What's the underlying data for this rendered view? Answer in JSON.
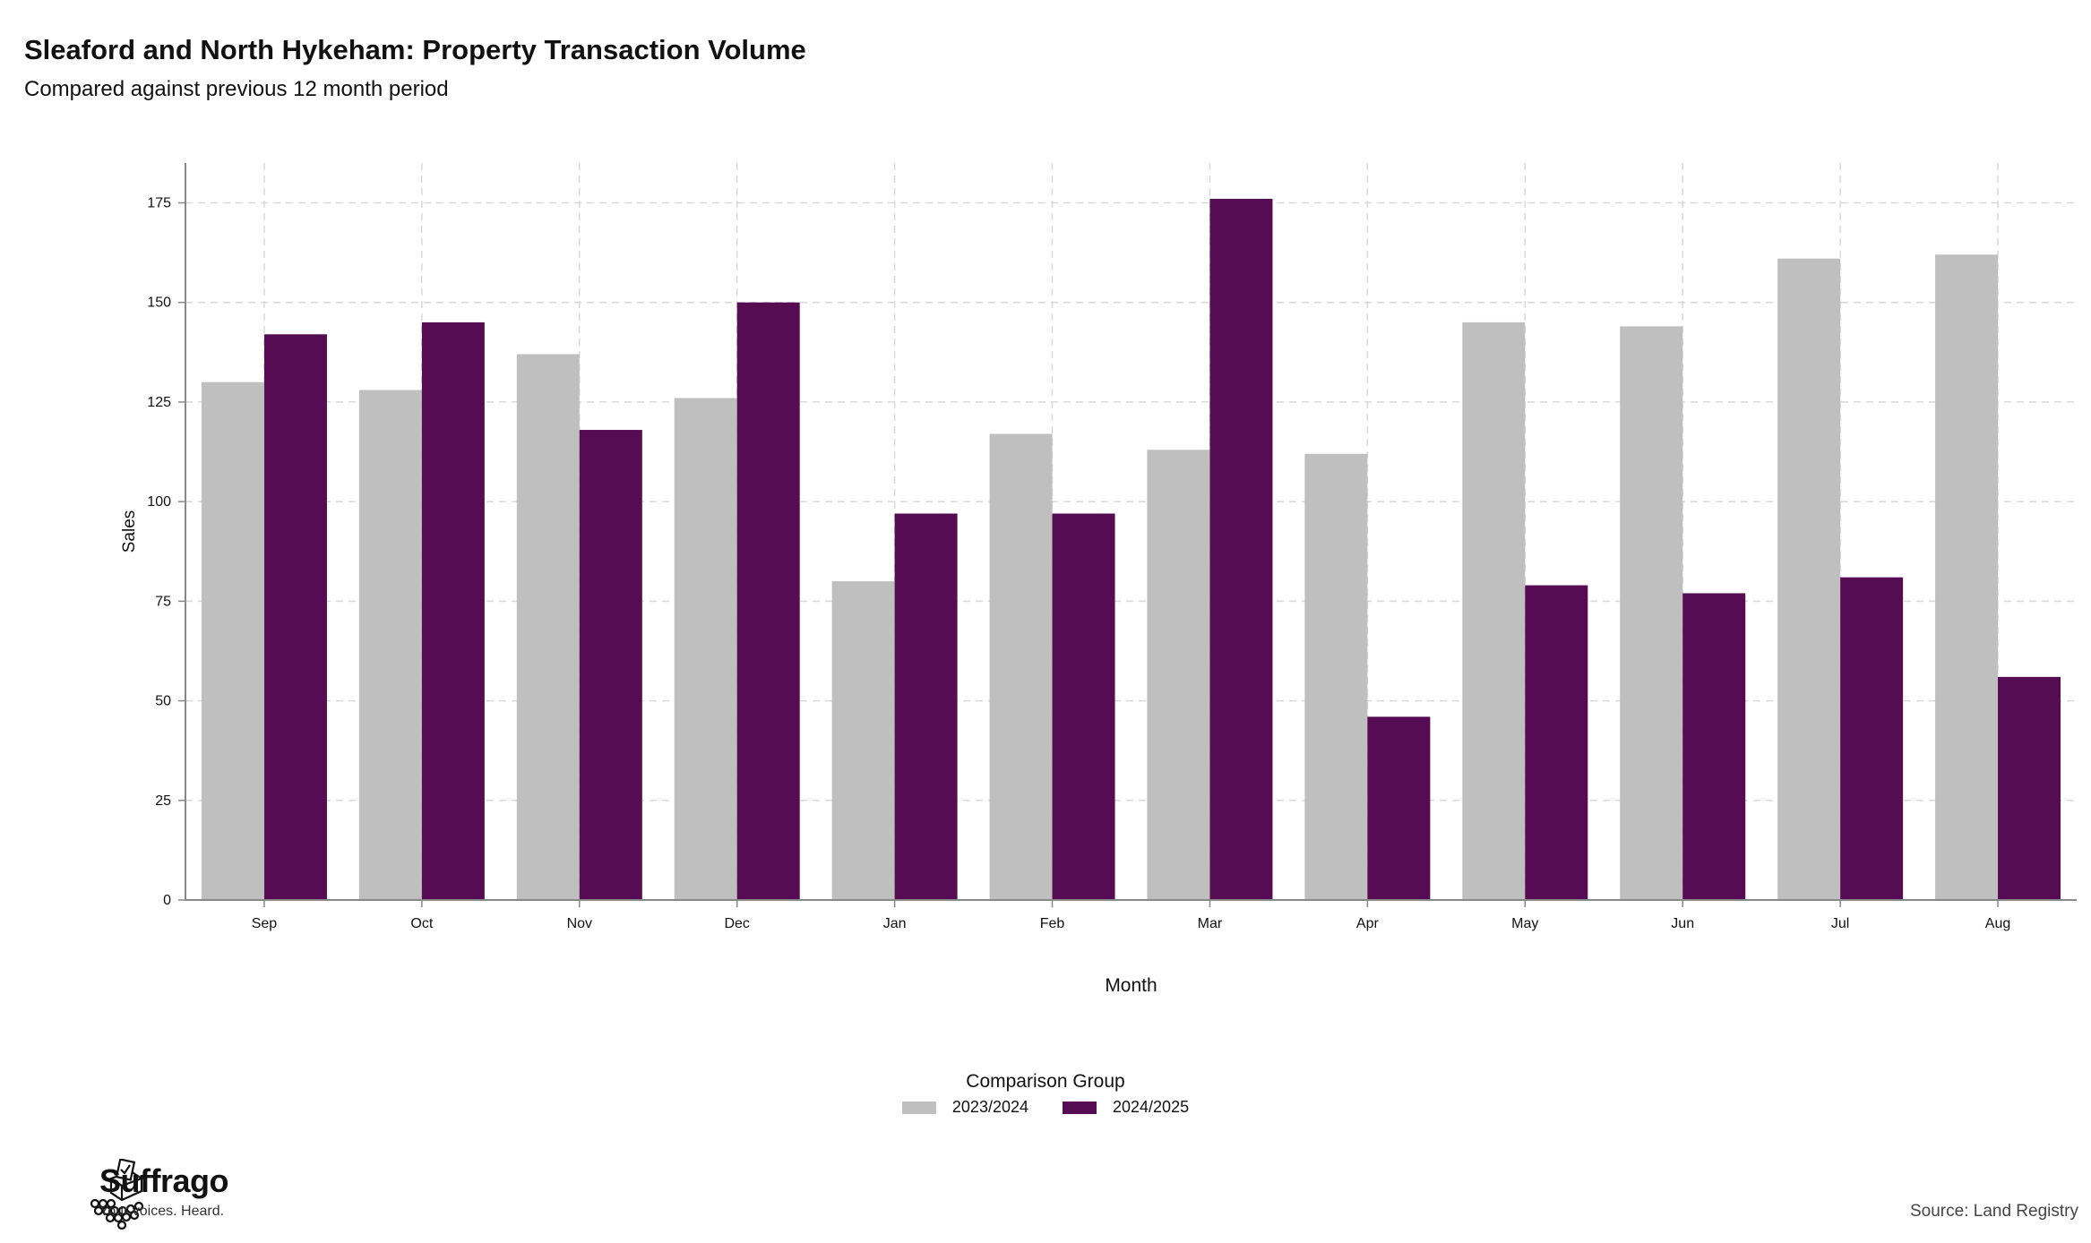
{
  "title": "Sleaford and North Hykeham: Property Transaction Volume",
  "subtitle": "Compared against previous 12 month period",
  "source": "Source: Land Registry",
  "brand": {
    "name": "Suffrago",
    "tagline": "Your voices. Heard.",
    "logo_icon": "ballot-box-icon"
  },
  "legend": {
    "title": "Comparison Group"
  },
  "colors": {
    "2023/2024": "#bfbfbf",
    "2024/2025": "#560c52",
    "grid": "#d9d9d9",
    "axis": "#888888"
  },
  "chart_data": {
    "type": "bar",
    "xlabel": "Month",
    "ylabel": "Sales",
    "categories": [
      "Sep",
      "Oct",
      "Nov",
      "Dec",
      "Jan",
      "Feb",
      "Mar",
      "Apr",
      "May",
      "Jun",
      "Jul",
      "Aug"
    ],
    "series": [
      {
        "name": "2023/2024",
        "values": [
          130,
          128,
          137,
          126,
          80,
          117,
          113,
          112,
          145,
          144,
          161,
          162
        ]
      },
      {
        "name": "2024/2025",
        "values": [
          142,
          145,
          118,
          150,
          97,
          97,
          176,
          46,
          79,
          77,
          81,
          56
        ]
      }
    ],
    "ylim": [
      0,
      185
    ],
    "yticks": [
      0,
      25,
      50,
      75,
      100,
      125,
      150,
      175
    ],
    "grid": true,
    "legend_position": "bottom"
  }
}
